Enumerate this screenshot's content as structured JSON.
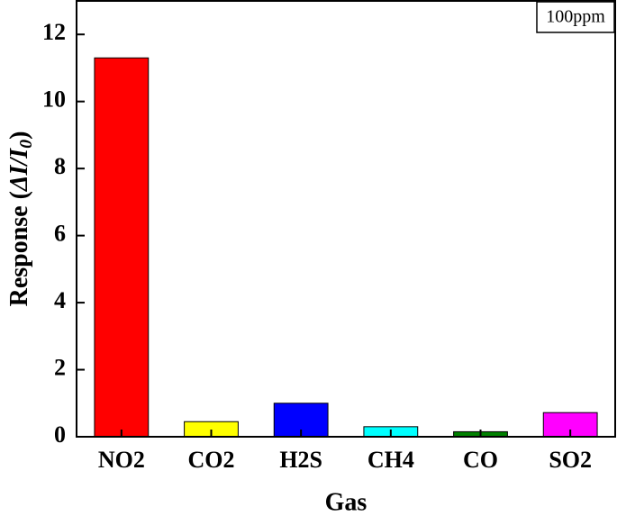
{
  "chart_data": {
    "type": "bar",
    "categories": [
      "NO2",
      "CO2",
      "H2S",
      "CH4",
      "CO",
      "SO2"
    ],
    "values": [
      11.3,
      0.45,
      1.0,
      0.3,
      0.15,
      0.72
    ],
    "colors": [
      "#ff0000",
      "#ffff00",
      "#0000ff",
      "#00ffff",
      "#008000",
      "#ff00ff"
    ],
    "ylim": [
      0,
      13
    ],
    "yticks": [
      0,
      2,
      4,
      6,
      8,
      10,
      12
    ],
    "xlabel": "Gas",
    "ylabel": [
      "Response (",
      "ΔI/I",
      "0",
      ")"
    ],
    "annotation": "100ppm"
  }
}
